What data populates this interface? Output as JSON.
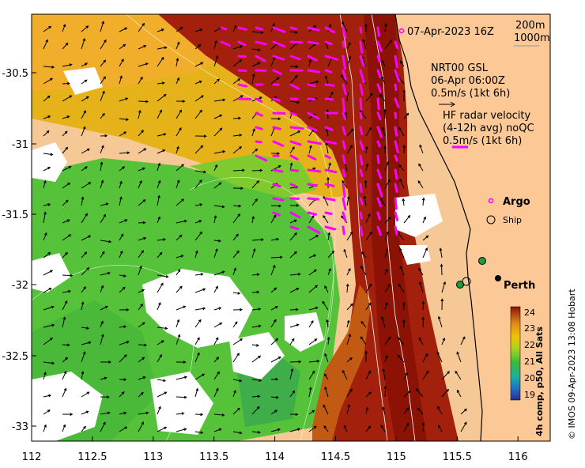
{
  "map": {
    "date_label": "07-Apr-2023 16Z",
    "isobath_labels": [
      "200m",
      "1000m"
    ],
    "gsl_title": "NRT00 GSL",
    "gsl_time": "06-Apr 06:00Z",
    "gsl_scale": "0.5m/s (1kt 6h)",
    "hf_title": "HF radar velocity",
    "hf_avg": "(4-12h avg) noQC",
    "hf_scale": "0.5m/s (1kt 6h)",
    "legend_argo": "Argo",
    "legend_ship": "Ship",
    "place_perth": "Perth",
    "colorbar_label": "4h comp, p50, All Sats",
    "credit": "© IMOS 09-Apr-2023 13:08 Hobart",
    "colorbar_ticks": [
      "24",
      "23",
      "22",
      "21",
      "20",
      "19"
    ],
    "x_ticks": [
      "112",
      "112.5",
      "113",
      "113.5",
      "114",
      "114.5",
      "115",
      "115.5",
      "116"
    ],
    "y_ticks": [
      "-30.5",
      "-31",
      "-31.5",
      "-32",
      "-32.5",
      "-33"
    ]
  }
}
